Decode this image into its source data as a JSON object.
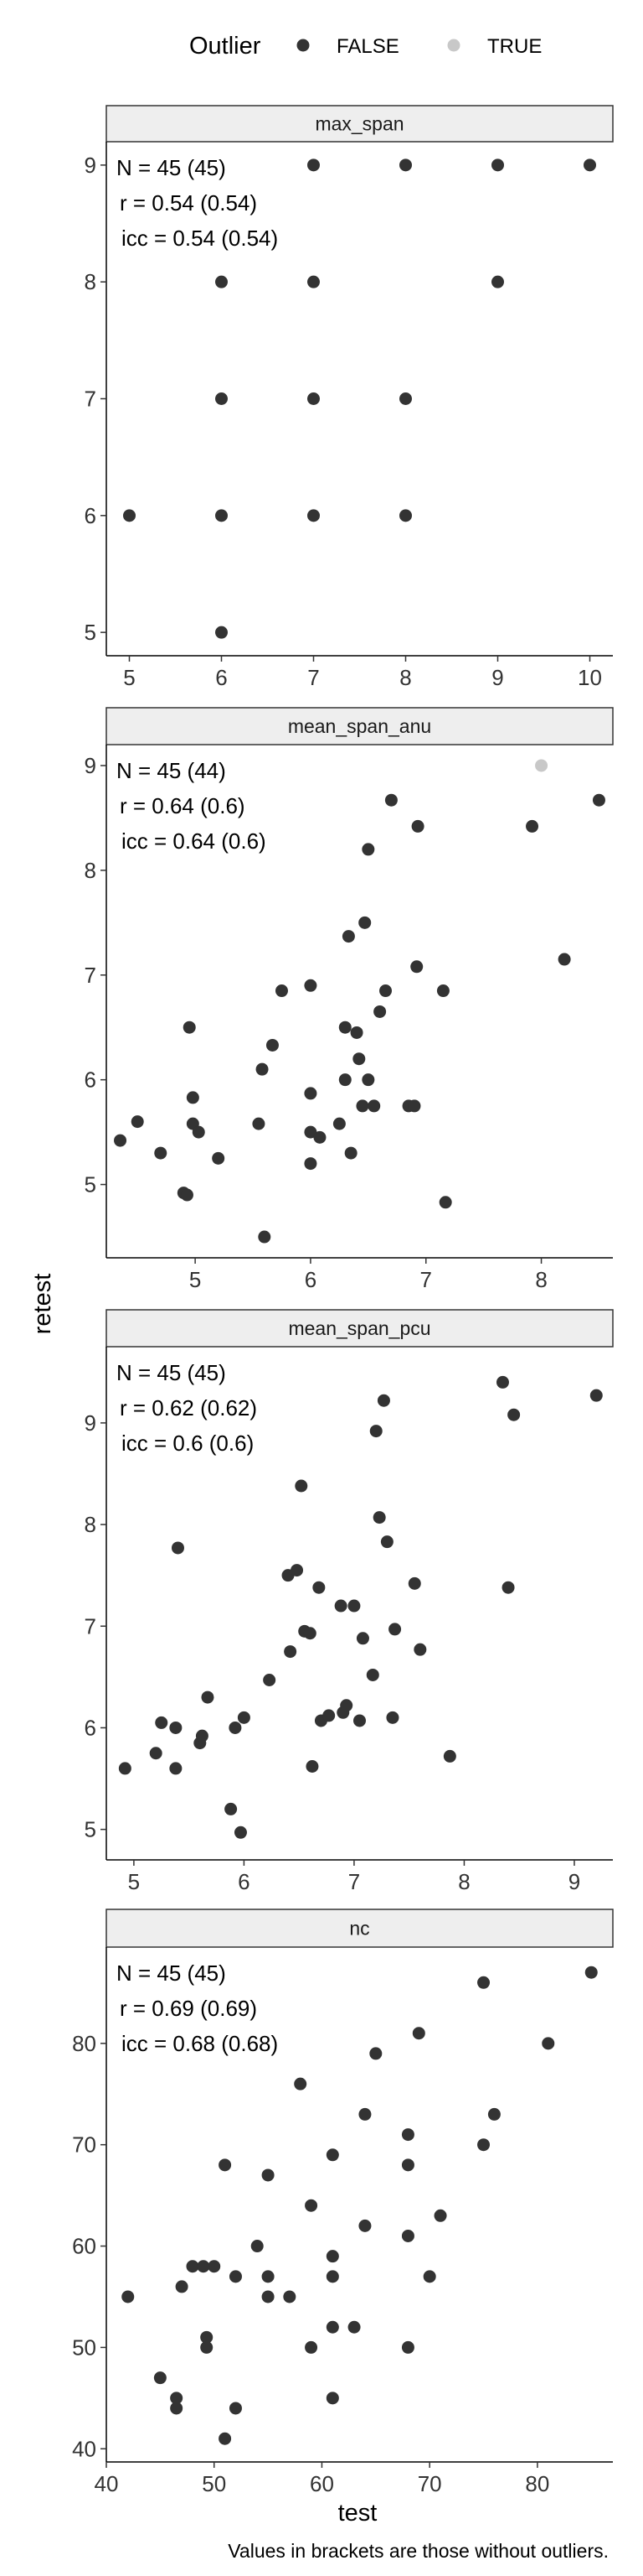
{
  "chart_data": {
    "type": "scatter",
    "xlabel": "test",
    "ylabel": "retest",
    "caption": "Values in brackets are those without outliers.",
    "legend": {
      "title": "Outlier",
      "placement": "top",
      "entries": [
        {
          "label": "FALSE",
          "color": "#333333"
        },
        {
          "label": "TRUE",
          "color": "#c8c8c8"
        }
      ]
    },
    "panels": [
      {
        "name": "max_span",
        "xlim": [
          4.75,
          10.25
        ],
        "ylim": [
          4.8,
          9.2
        ],
        "xticks": [
          5,
          6,
          7,
          8,
          9,
          10
        ],
        "yticks": [
          5,
          6,
          7,
          8,
          9
        ],
        "stats": [
          "N = 45 (45)",
          "r = 0.54 (0.54)",
          "icc = 0.54 (0.54)"
        ],
        "points": [
          [
            5,
            6
          ],
          [
            6,
            5
          ],
          [
            6,
            6
          ],
          [
            6,
            7
          ],
          [
            6,
            8
          ],
          [
            7,
            6
          ],
          [
            7,
            7
          ],
          [
            7,
            8
          ],
          [
            7,
            9
          ],
          [
            8,
            6
          ],
          [
            8,
            7
          ],
          [
            8,
            9
          ],
          [
            9,
            8
          ],
          [
            9,
            9
          ],
          [
            10,
            9
          ]
        ],
        "outliers": []
      },
      {
        "name": "mean_span_anu",
        "xlim": [
          4.23,
          8.62
        ],
        "ylim": [
          4.3,
          9.2
        ],
        "xticks": [
          5,
          6,
          7,
          8
        ],
        "yticks": [
          5,
          6,
          7,
          8,
          9
        ],
        "stats": [
          "N = 45 (44)",
          "r = 0.64 (0.6)",
          "icc = 0.64 (0.6)"
        ],
        "points": [
          [
            4.35,
            5.42
          ],
          [
            4.5,
            5.6
          ],
          [
            4.7,
            5.3
          ],
          [
            4.9,
            4.92
          ],
          [
            4.93,
            4.9
          ],
          [
            4.95,
            6.5
          ],
          [
            4.98,
            5.58
          ],
          [
            4.98,
            5.83
          ],
          [
            5.03,
            5.5
          ],
          [
            5.2,
            5.25
          ],
          [
            5.55,
            5.58
          ],
          [
            5.58,
            6.1
          ],
          [
            5.6,
            4.5
          ],
          [
            5.67,
            6.33
          ],
          [
            5.75,
            6.85
          ],
          [
            6.0,
            6.9
          ],
          [
            6.0,
            5.87
          ],
          [
            6.0,
            5.5
          ],
          [
            6.0,
            5.2
          ],
          [
            6.08,
            5.45
          ],
          [
            6.25,
            5.58
          ],
          [
            6.3,
            6.5
          ],
          [
            6.3,
            6.0
          ],
          [
            6.33,
            7.37
          ],
          [
            6.35,
            5.3
          ],
          [
            6.4,
            6.45
          ],
          [
            6.42,
            6.2
          ],
          [
            6.45,
            5.75
          ],
          [
            6.47,
            7.5
          ],
          [
            6.5,
            8.2
          ],
          [
            6.5,
            6.0
          ],
          [
            6.55,
            5.75
          ],
          [
            6.6,
            6.65
          ],
          [
            6.65,
            6.85
          ],
          [
            6.7,
            8.67
          ],
          [
            6.85,
            5.75
          ],
          [
            6.9,
            5.75
          ],
          [
            6.92,
            7.08
          ],
          [
            6.93,
            8.42
          ],
          [
            7.15,
            6.85
          ],
          [
            7.17,
            4.83
          ],
          [
            7.92,
            8.42
          ],
          [
            8.2,
            7.15
          ],
          [
            8.5,
            8.67
          ]
        ],
        "outliers": [
          [
            8.0,
            9.0
          ]
        ]
      },
      {
        "name": "mean_span_pcu",
        "xlim": [
          4.75,
          9.35
        ],
        "ylim": [
          4.7,
          9.75
        ],
        "xticks": [
          5,
          6,
          7,
          8,
          9
        ],
        "yticks": [
          5,
          6,
          7,
          8,
          9
        ],
        "stats": [
          "N = 45 (45)",
          "r = 0.62 (0.62)",
          "icc = 0.6 (0.6)"
        ],
        "points": [
          [
            4.92,
            5.6
          ],
          [
            5.2,
            5.75
          ],
          [
            5.25,
            6.05
          ],
          [
            5.38,
            5.6
          ],
          [
            5.38,
            6.0
          ],
          [
            5.4,
            7.77
          ],
          [
            5.6,
            5.85
          ],
          [
            5.62,
            5.92
          ],
          [
            5.67,
            6.3
          ],
          [
            5.88,
            5.2
          ],
          [
            5.92,
            6.0
          ],
          [
            5.97,
            4.97
          ],
          [
            6.0,
            6.1
          ],
          [
            6.23,
            6.47
          ],
          [
            6.4,
            7.5
          ],
          [
            6.42,
            6.75
          ],
          [
            6.48,
            7.55
          ],
          [
            6.52,
            8.38
          ],
          [
            6.55,
            6.95
          ],
          [
            6.6,
            6.93
          ],
          [
            6.62,
            5.62
          ],
          [
            6.68,
            7.38
          ],
          [
            6.7,
            6.07
          ],
          [
            6.77,
            6.12
          ],
          [
            6.88,
            7.2
          ],
          [
            6.9,
            6.15
          ],
          [
            6.93,
            6.22
          ],
          [
            7.0,
            7.2
          ],
          [
            7.05,
            6.07
          ],
          [
            7.08,
            6.88
          ],
          [
            7.17,
            6.52
          ],
          [
            7.2,
            8.92
          ],
          [
            7.23,
            8.07
          ],
          [
            7.27,
            9.22
          ],
          [
            7.3,
            7.83
          ],
          [
            7.35,
            6.1
          ],
          [
            7.37,
            6.97
          ],
          [
            7.55,
            7.42
          ],
          [
            7.6,
            6.77
          ],
          [
            7.87,
            5.72
          ],
          [
            8.35,
            9.4
          ],
          [
            8.4,
            7.38
          ],
          [
            8.45,
            9.08
          ],
          [
            9.2,
            9.27
          ]
        ],
        "outliers": []
      },
      {
        "name": "nc",
        "xlim": [
          40,
          87
        ],
        "ylim": [
          38.7,
          89.5
        ],
        "xticks": [
          40,
          50,
          60,
          70,
          80
        ],
        "yticks": [
          40,
          50,
          60,
          70,
          80
        ],
        "stats": [
          "N = 45 (45)",
          "r = 0.69 (0.69)",
          "icc = 0.68 (0.68)"
        ],
        "points": [
          [
            42,
            55
          ],
          [
            45,
            47
          ],
          [
            46.5,
            44
          ],
          [
            46.5,
            45
          ],
          [
            47,
            56
          ],
          [
            48,
            58
          ],
          [
            49,
            58
          ],
          [
            49.3,
            50
          ],
          [
            49.3,
            51
          ],
          [
            50,
            58
          ],
          [
            51,
            68
          ],
          [
            51,
            41
          ],
          [
            52,
            57
          ],
          [
            52,
            44
          ],
          [
            54,
            60
          ],
          [
            55,
            67
          ],
          [
            55,
            57
          ],
          [
            55,
            55
          ],
          [
            57,
            55
          ],
          [
            58,
            76
          ],
          [
            59,
            50
          ],
          [
            59,
            64
          ],
          [
            61,
            52
          ],
          [
            61,
            57
          ],
          [
            61,
            59
          ],
          [
            61,
            69
          ],
          [
            61,
            45
          ],
          [
            63,
            52
          ],
          [
            64,
            73
          ],
          [
            64,
            62
          ],
          [
            65,
            79
          ],
          [
            68,
            50
          ],
          [
            68,
            61
          ],
          [
            68,
            68
          ],
          [
            68,
            71
          ],
          [
            69,
            81
          ],
          [
            70,
            57
          ],
          [
            71,
            63
          ],
          [
            75,
            70
          ],
          [
            75,
            86
          ],
          [
            76,
            73
          ],
          [
            81,
            80
          ],
          [
            85,
            87
          ]
        ],
        "outliers": []
      }
    ]
  }
}
